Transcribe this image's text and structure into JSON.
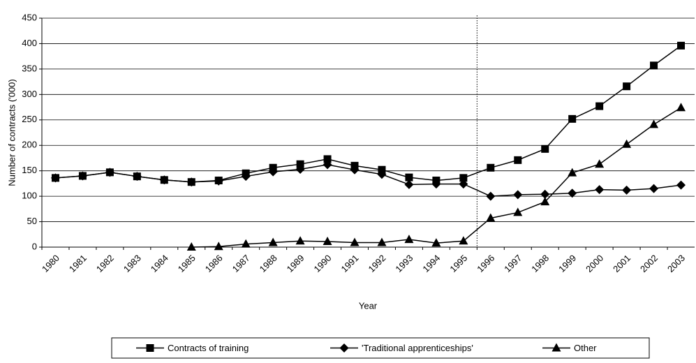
{
  "chart_data": {
    "type": "line",
    "y_label": "Number of contracts ('000)",
    "x_label": "Year",
    "categories": [
      "1980",
      "1981",
      "1982",
      "1983",
      "1984",
      "1985",
      "1986",
      "1987",
      "1988",
      "1989",
      "1990",
      "1991",
      "1992",
      "1993",
      "1994",
      "1995",
      "1996",
      "1997",
      "1998",
      "1999",
      "2000",
      "2001",
      "2002",
      "2003"
    ],
    "series": [
      {
        "name": "Contracts of training",
        "color": "#000000",
        "marker": "square",
        "values": [
          136,
          140,
          147,
          139,
          132,
          128,
          131,
          145,
          156,
          163,
          173,
          160,
          152,
          137,
          131,
          136,
          156,
          171,
          193,
          252,
          277,
          316,
          357,
          396
        ]
      },
      {
        "name": "'Traditional apprenticeships'",
        "color": "#000000",
        "marker": "diamond",
        "values": [
          136,
          140,
          147,
          139,
          132,
          128,
          130,
          139,
          148,
          153,
          162,
          152,
          143,
          123,
          124,
          124,
          100,
          103,
          104,
          106,
          113,
          112,
          115,
          122
        ]
      },
      {
        "name": "Other",
        "color": "#000000",
        "marker": "triangle",
        "values": [
          null,
          null,
          null,
          null,
          null,
          0,
          1,
          6,
          9,
          12,
          11,
          9,
          9,
          15,
          8,
          12,
          57,
          68,
          89,
          146,
          163,
          202,
          241,
          274
        ]
      }
    ],
    "ylim": [
      0,
      450
    ],
    "yticks": [
      0,
      50,
      100,
      150,
      200,
      250,
      300,
      350,
      400,
      450
    ],
    "grid": true,
    "legend": "bottom",
    "reference_line": "1996"
  }
}
